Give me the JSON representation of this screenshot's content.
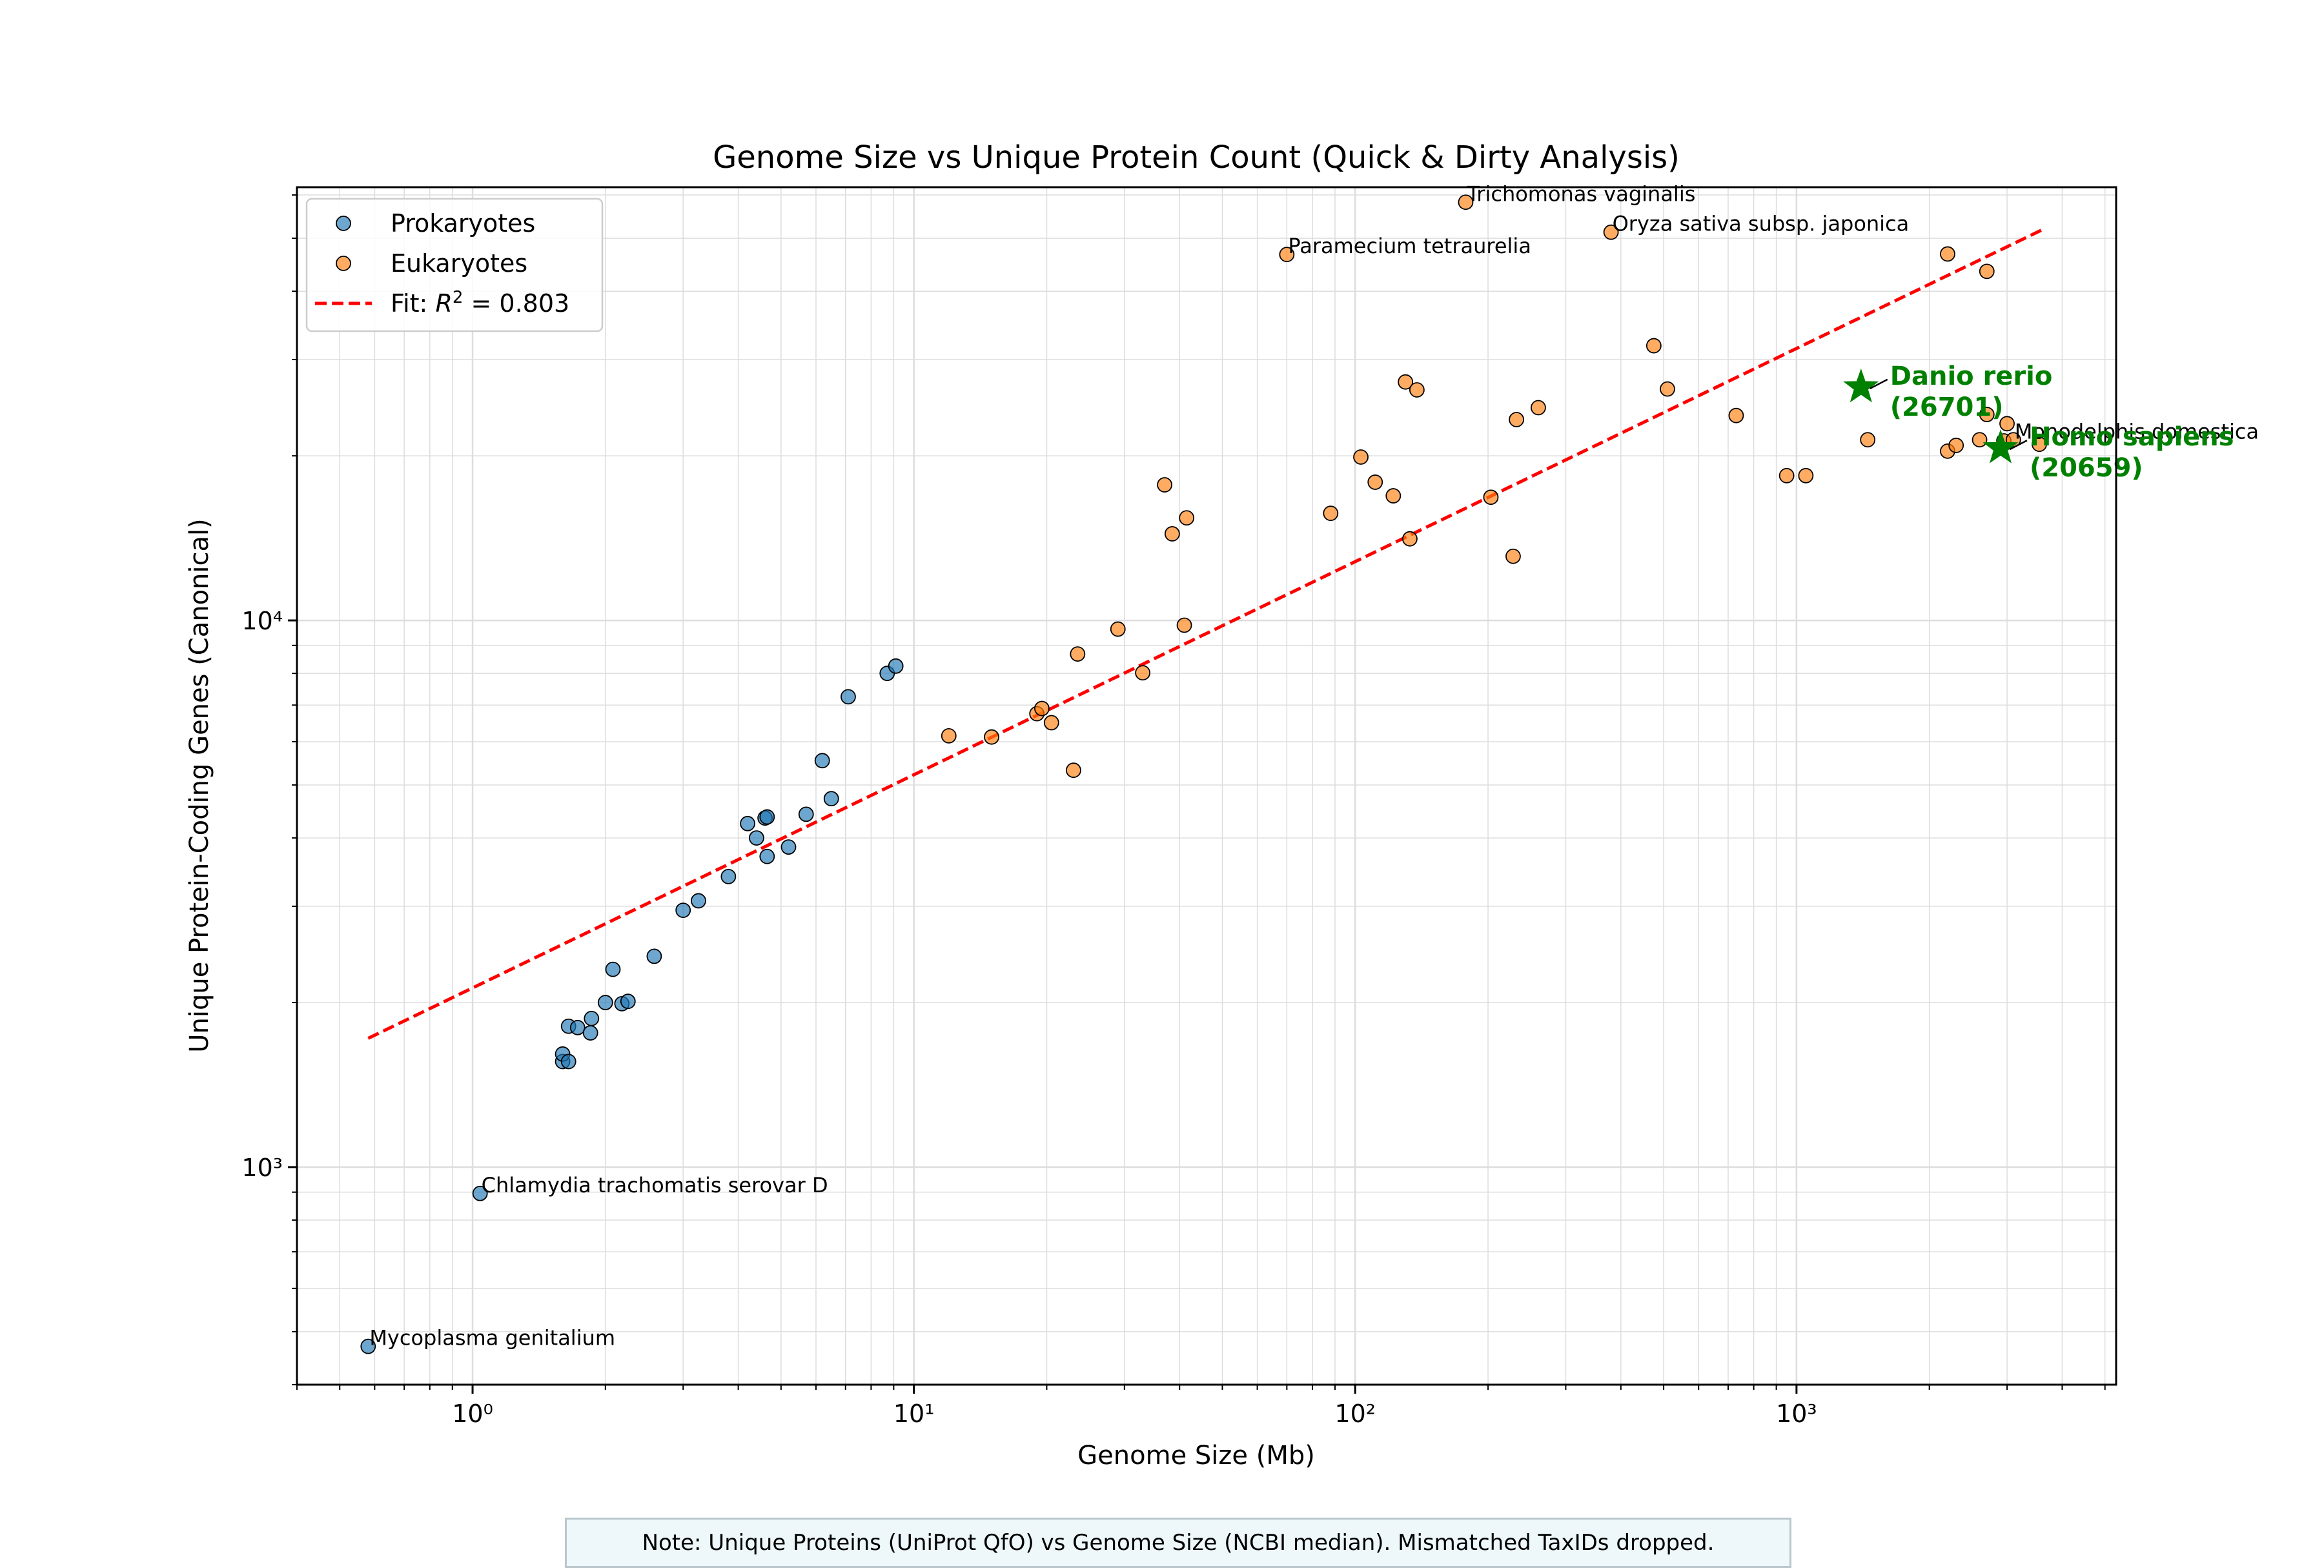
{
  "chart_data": {
    "type": "scatter",
    "title": "Genome Size vs Unique Protein Count (Quick & Dirty Analysis)",
    "xlabel": "Genome Size (Mb)",
    "ylabel": "Unique Protein-Coding Genes (Canonical)",
    "xscale": "log",
    "yscale": "log",
    "xlim": [
      0.4,
      5300
    ],
    "ylim": [
      400,
      62000
    ],
    "xticks": [
      {
        "value": 1,
        "label": "10⁰"
      },
      {
        "value": 10,
        "label": "10¹"
      },
      {
        "value": 100,
        "label": "10²"
      },
      {
        "value": 1000,
        "label": "10³"
      }
    ],
    "yticks": [
      {
        "value": 1000,
        "label": "10³"
      },
      {
        "value": 10000,
        "label": "10⁴"
      }
    ],
    "grid": true,
    "legend_position": "upper-left",
    "legend": [
      {
        "label": "Prokaryotes",
        "kind": "marker",
        "color": "#1f77b4"
      },
      {
        "label": "Eukaryotes",
        "kind": "marker",
        "color": "#ff7f0e"
      },
      {
        "label_prefix": "Fit: ",
        "label_symbol": "R",
        "label_exp": "2",
        "label_suffix": " = 0.803",
        "kind": "dashed-line",
        "color": "#ff0000"
      }
    ],
    "series": [
      {
        "name": "Prokaryotes",
        "color": "#1f77b4",
        "points": [
          [
            0.58,
            470
          ],
          [
            1.04,
            895
          ],
          [
            1.6,
            1560
          ],
          [
            1.6,
            1610
          ],
          [
            1.65,
            1560
          ],
          [
            1.65,
            1810
          ],
          [
            1.73,
            1800
          ],
          [
            1.85,
            1760
          ],
          [
            1.86,
            1870
          ],
          [
            2.0,
            2000
          ],
          [
            2.08,
            2300
          ],
          [
            2.18,
            1990
          ],
          [
            2.25,
            2010
          ],
          [
            2.58,
            2430
          ],
          [
            3.0,
            2950
          ],
          [
            3.25,
            3070
          ],
          [
            3.8,
            3400
          ],
          [
            4.2,
            4250
          ],
          [
            4.4,
            4000
          ],
          [
            4.6,
            4350
          ],
          [
            4.65,
            4370
          ],
          [
            4.65,
            3700
          ],
          [
            5.2,
            3850
          ],
          [
            5.7,
            4420
          ],
          [
            6.2,
            5540
          ],
          [
            6.5,
            4720
          ],
          [
            7.1,
            7250
          ],
          [
            8.7,
            8000
          ],
          [
            9.1,
            8250
          ]
        ]
      },
      {
        "name": "Eukaryotes",
        "color": "#ff7f0e",
        "points": [
          [
            12,
            6150
          ],
          [
            15,
            6120
          ],
          [
            19,
            6750
          ],
          [
            19.5,
            6900
          ],
          [
            20.5,
            6500
          ],
          [
            23,
            5320
          ],
          [
            23.5,
            8680
          ],
          [
            29,
            9640
          ],
          [
            33,
            8020
          ],
          [
            37,
            17700
          ],
          [
            38.5,
            14400
          ],
          [
            41,
            9800
          ],
          [
            41.5,
            15400
          ],
          [
            70,
            46700
          ],
          [
            88,
            15700
          ],
          [
            103,
            19900
          ],
          [
            111,
            17900
          ],
          [
            122,
            16900
          ],
          [
            130,
            27300
          ],
          [
            133,
            14100
          ],
          [
            138,
            26400
          ],
          [
            178,
            58200
          ],
          [
            203,
            16800
          ],
          [
            228,
            13100
          ],
          [
            232,
            23300
          ],
          [
            260,
            24500
          ],
          [
            380,
            51300
          ],
          [
            475,
            31800
          ],
          [
            510,
            26500
          ],
          [
            730,
            23700
          ],
          [
            950,
            18400
          ],
          [
            1050,
            18400
          ],
          [
            1450,
            21400
          ],
          [
            2200,
            46800
          ],
          [
            2200,
            20400
          ],
          [
            2300,
            20900
          ],
          [
            2600,
            21400
          ],
          [
            2700,
            23800
          ],
          [
            2700,
            43500
          ],
          [
            2950,
            21300
          ],
          [
            3000,
            22900
          ],
          [
            3100,
            21400
          ],
          [
            3550,
            21000
          ]
        ]
      }
    ],
    "fit_line": {
      "x": [
        0.58,
        3600
      ],
      "y": [
        1720,
        51800
      ],
      "r2": 0.803
    },
    "annotations": [
      {
        "text": "Mycoplasma genitalium",
        "x": 0.58,
        "y": 470
      },
      {
        "text": "Chlamydia trachomatis serovar D",
        "x": 1.04,
        "y": 895
      },
      {
        "text": "Paramecium tetraurelia",
        "x": 70,
        "y": 46700
      },
      {
        "text": "Trichomonas vaginalis",
        "x": 178,
        "y": 58200
      },
      {
        "text": "Oryza sativa subsp. japonica",
        "x": 380,
        "y": 51300
      },
      {
        "text": "Monodelphis domestica",
        "x": 3100,
        "y": 21400
      }
    ],
    "highlights": [
      {
        "name": "Danio rerio",
        "value_label": "(26701)",
        "x": 1400,
        "y": 26701,
        "color": "#008000"
      },
      {
        "name": "Homo sapiens",
        "value_label": "(20659)",
        "x": 2900,
        "y": 20659,
        "color": "#008000"
      }
    ]
  },
  "footnote": "Note: Unique Proteins (UniProt QfO) vs Genome Size (NCBI median). Mismatched TaxIDs dropped."
}
